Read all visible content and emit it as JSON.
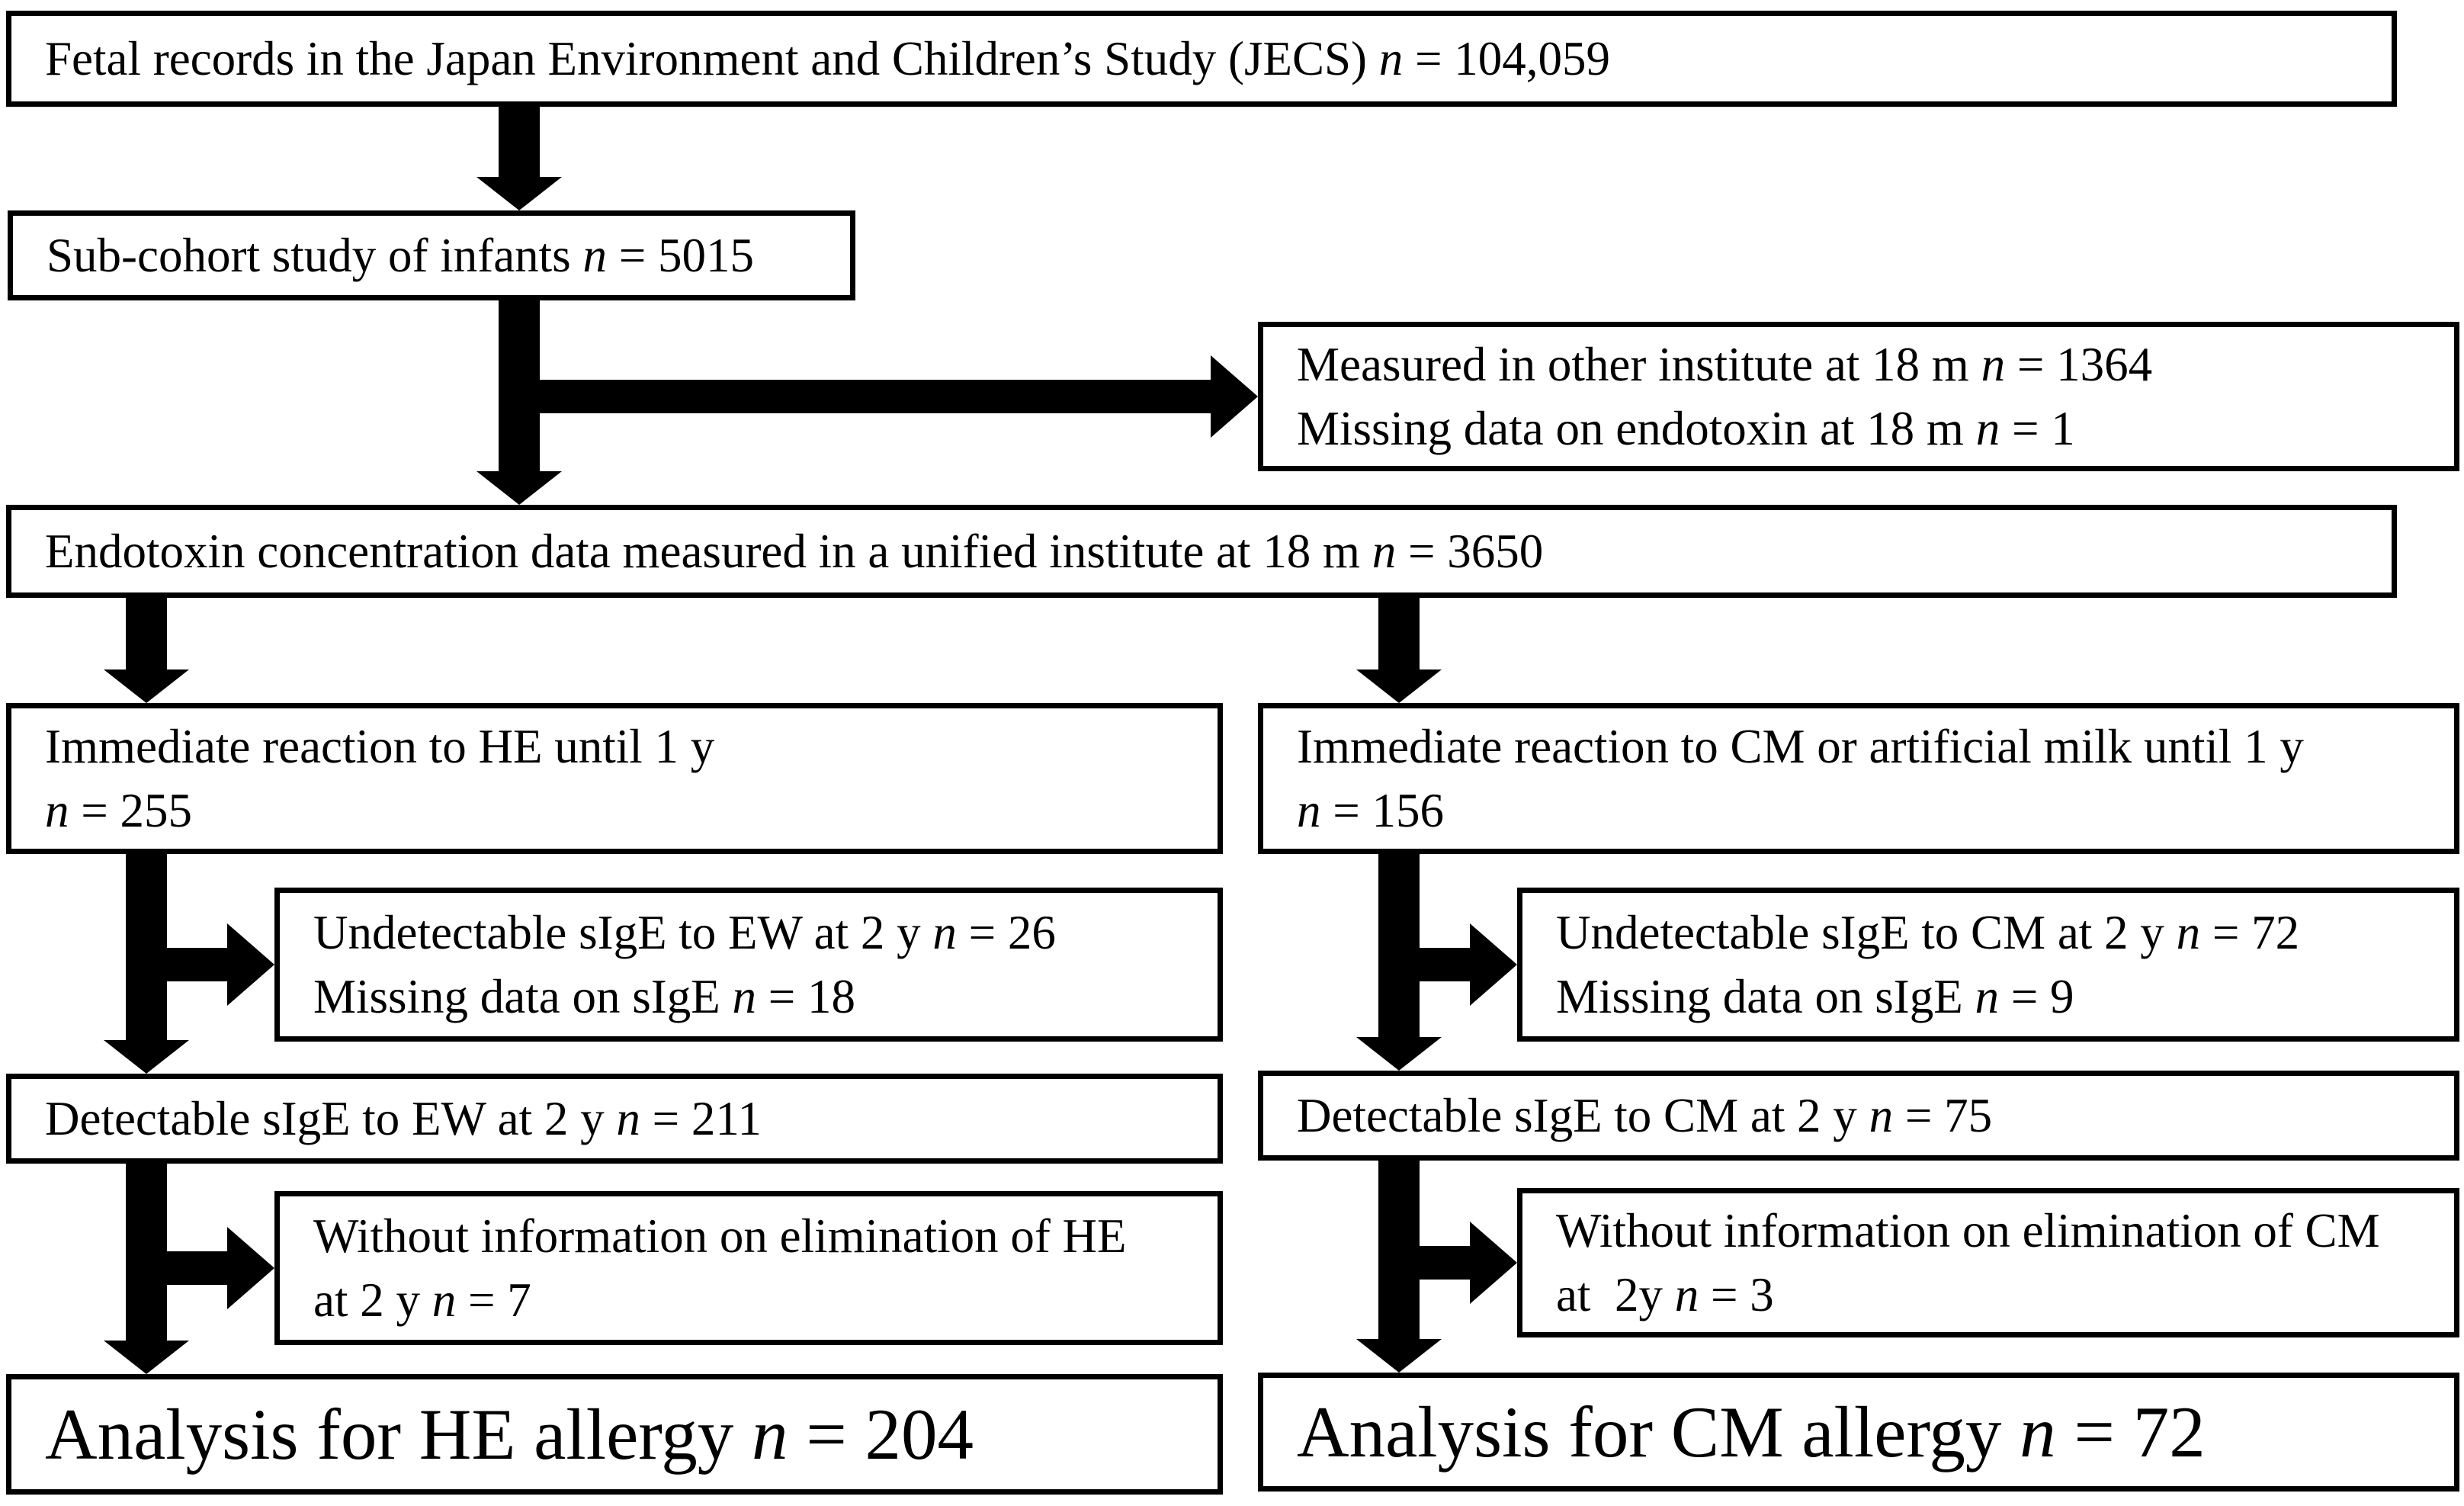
{
  "flow": {
    "jecs": {
      "line1": "Fetal records in the Japan Environment and Children’s Study (JECS) n = 104,059"
    },
    "subcohort": {
      "line1": "Sub-cohort study of infants n = 5015"
    },
    "excluded_endotoxin": {
      "line1": "Measured in other institute at 18 m n = 1364",
      "line2": "Missing data on endotoxin at 18 m n = 1"
    },
    "unified": {
      "line1": "Endotoxin concentration data measured in a unified institute at 18 m n = 3650"
    },
    "he_immediate": {
      "line1": "Immediate reaction to HE until 1 y",
      "line2": "n = 255"
    },
    "cm_immediate": {
      "line1": "Immediate reaction to CM or artificial milk until 1 y",
      "line2": "n = 156"
    },
    "he_undetectable": {
      "line1": "Undetectable sIgE to EW at 2 y n = 26",
      "line2": "Missing data on sIgE n = 18"
    },
    "cm_undetectable": {
      "line1": "Undetectable sIgE to CM at 2 y n = 72",
      "line2": "Missing data on sIgE n = 9"
    },
    "he_detectable": {
      "line1": "Detectable sIgE to EW at 2 y n = 211"
    },
    "cm_detectable": {
      "line1": "Detectable sIgE to CM at 2 y n = 75"
    },
    "he_without": {
      "line1": "Without information on elimination of HE",
      "line2": "at 2 y n = 7"
    },
    "cm_without": {
      "line1": "Without information on elimination of CM",
      "line2": "at  2y n = 3"
    },
    "he_analysis": {
      "line1": "Analysis for HE allergy n = 204"
    },
    "cm_analysis": {
      "line1": "Analysis for CM allergy n = 72"
    }
  },
  "colors": {
    "ink": "#000000",
    "paper": "#ffffff"
  }
}
